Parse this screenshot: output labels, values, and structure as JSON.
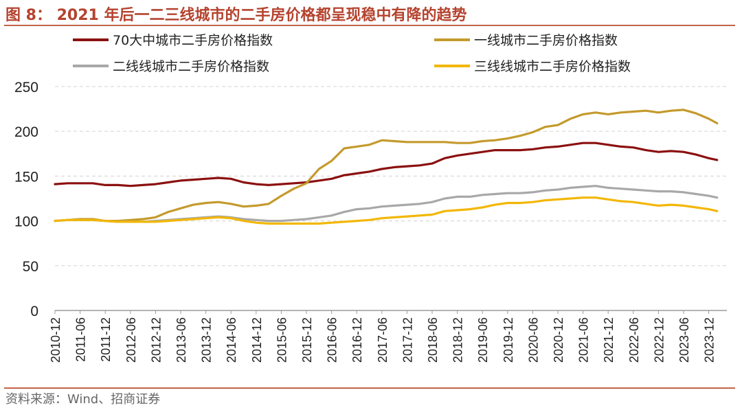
{
  "figure": {
    "title": "图 8： 2021 年后一二三线城市的二手房价格都呈现稳中有降的趋势",
    "source": "资料来源：Wind、招商证券"
  },
  "colors": {
    "s70": "#8B1010",
    "tier1": "#C49A2C",
    "tier2": "#A8A8A8",
    "tier3": "#F2B705",
    "grid": "#D9D9D9",
    "title": "#B5432E"
  },
  "chart_data": {
    "type": "line",
    "title": "",
    "xlabel": "",
    "ylabel": "",
    "ylim": [
      0,
      250
    ],
    "yticks": [
      0,
      50,
      100,
      150,
      200,
      250
    ],
    "grid": true,
    "legend_position": "top",
    "x_tick_labels": [
      "2010-12",
      "2011-06",
      "2011-12",
      "2012-06",
      "2012-12",
      "2013-06",
      "2013-12",
      "2014-06",
      "2014-12",
      "2015-06",
      "2015-12",
      "2016-06",
      "2016-12",
      "2017-06",
      "2017-12",
      "2018-06",
      "2018-12",
      "2019-06",
      "2019-12",
      "2020-06",
      "2020-12",
      "2021-06",
      "2021-12",
      "2022-06",
      "2022-12",
      "2023-06",
      "2023-12"
    ],
    "x_start": "2010-12",
    "x_end": "2024-02",
    "series": [
      {
        "name": "70大中城市二手房价格指数",
        "color_key": "s70",
        "points": [
          [
            "2010-12",
            141
          ],
          [
            "2011-03",
            142
          ],
          [
            "2011-06",
            142
          ],
          [
            "2011-09",
            142
          ],
          [
            "2011-12",
            140
          ],
          [
            "2012-03",
            140
          ],
          [
            "2012-06",
            139
          ],
          [
            "2012-09",
            140
          ],
          [
            "2012-12",
            141
          ],
          [
            "2013-03",
            143
          ],
          [
            "2013-06",
            145
          ],
          [
            "2013-09",
            146
          ],
          [
            "2013-12",
            147
          ],
          [
            "2014-03",
            148
          ],
          [
            "2014-06",
            147
          ],
          [
            "2014-09",
            143
          ],
          [
            "2014-12",
            141
          ],
          [
            "2015-03",
            140
          ],
          [
            "2015-06",
            141
          ],
          [
            "2015-09",
            142
          ],
          [
            "2015-12",
            143
          ],
          [
            "2016-03",
            145
          ],
          [
            "2016-06",
            147
          ],
          [
            "2016-09",
            151
          ],
          [
            "2016-12",
            153
          ],
          [
            "2017-03",
            155
          ],
          [
            "2017-06",
            158
          ],
          [
            "2017-09",
            160
          ],
          [
            "2017-12",
            161
          ],
          [
            "2018-03",
            162
          ],
          [
            "2018-06",
            164
          ],
          [
            "2018-09",
            170
          ],
          [
            "2018-12",
            173
          ],
          [
            "2019-03",
            175
          ],
          [
            "2019-06",
            177
          ],
          [
            "2019-09",
            179
          ],
          [
            "2019-12",
            179
          ],
          [
            "2020-03",
            179
          ],
          [
            "2020-06",
            180
          ],
          [
            "2020-09",
            182
          ],
          [
            "2020-12",
            183
          ],
          [
            "2021-03",
            185
          ],
          [
            "2021-06",
            187
          ],
          [
            "2021-09",
            187
          ],
          [
            "2021-12",
            185
          ],
          [
            "2022-03",
            183
          ],
          [
            "2022-06",
            182
          ],
          [
            "2022-09",
            179
          ],
          [
            "2022-12",
            177
          ],
          [
            "2023-03",
            178
          ],
          [
            "2023-06",
            177
          ],
          [
            "2023-09",
            174
          ],
          [
            "2023-12",
            170
          ],
          [
            "2024-02",
            168
          ]
        ]
      },
      {
        "name": "一线城市二手房价格指数",
        "color_key": "tier1",
        "points": [
          [
            "2010-12",
            100
          ],
          [
            "2011-03",
            101
          ],
          [
            "2011-06",
            102
          ],
          [
            "2011-09",
            102
          ],
          [
            "2011-12",
            100
          ],
          [
            "2012-03",
            100
          ],
          [
            "2012-06",
            101
          ],
          [
            "2012-09",
            102
          ],
          [
            "2012-12",
            104
          ],
          [
            "2013-03",
            110
          ],
          [
            "2013-06",
            114
          ],
          [
            "2013-09",
            118
          ],
          [
            "2013-12",
            120
          ],
          [
            "2014-03",
            121
          ],
          [
            "2014-06",
            119
          ],
          [
            "2014-09",
            116
          ],
          [
            "2014-12",
            117
          ],
          [
            "2015-03",
            119
          ],
          [
            "2015-06",
            128
          ],
          [
            "2015-09",
            136
          ],
          [
            "2015-12",
            142
          ],
          [
            "2016-03",
            158
          ],
          [
            "2016-06",
            167
          ],
          [
            "2016-09",
            181
          ],
          [
            "2016-12",
            183
          ],
          [
            "2017-03",
            185
          ],
          [
            "2017-06",
            190
          ],
          [
            "2017-09",
            189
          ],
          [
            "2017-12",
            188
          ],
          [
            "2018-03",
            188
          ],
          [
            "2018-06",
            188
          ],
          [
            "2018-09",
            188
          ],
          [
            "2018-12",
            187
          ],
          [
            "2019-03",
            187
          ],
          [
            "2019-06",
            189
          ],
          [
            "2019-09",
            190
          ],
          [
            "2019-12",
            192
          ],
          [
            "2020-03",
            195
          ],
          [
            "2020-06",
            199
          ],
          [
            "2020-09",
            205
          ],
          [
            "2020-12",
            207
          ],
          [
            "2021-03",
            214
          ],
          [
            "2021-06",
            219
          ],
          [
            "2021-09",
            221
          ],
          [
            "2021-12",
            219
          ],
          [
            "2022-03",
            221
          ],
          [
            "2022-06",
            222
          ],
          [
            "2022-09",
            223
          ],
          [
            "2022-12",
            221
          ],
          [
            "2023-03",
            223
          ],
          [
            "2023-06",
            224
          ],
          [
            "2023-09",
            220
          ],
          [
            "2023-12",
            214
          ],
          [
            "2024-02",
            209
          ]
        ]
      },
      {
        "name": "二线线城市二手房价格指数",
        "color_key": "tier2",
        "points": [
          [
            "2010-12",
            100
          ],
          [
            "2011-03",
            101
          ],
          [
            "2011-06",
            101
          ],
          [
            "2011-09",
            101
          ],
          [
            "2011-12",
            100
          ],
          [
            "2012-03",
            99
          ],
          [
            "2012-06",
            99
          ],
          [
            "2012-09",
            99
          ],
          [
            "2012-12",
            100
          ],
          [
            "2013-03",
            101
          ],
          [
            "2013-06",
            102
          ],
          [
            "2013-09",
            103
          ],
          [
            "2013-12",
            104
          ],
          [
            "2014-03",
            105
          ],
          [
            "2014-06",
            104
          ],
          [
            "2014-09",
            102
          ],
          [
            "2014-12",
            101
          ],
          [
            "2015-03",
            100
          ],
          [
            "2015-06",
            100
          ],
          [
            "2015-09",
            101
          ],
          [
            "2015-12",
            102
          ],
          [
            "2016-03",
            104
          ],
          [
            "2016-06",
            106
          ],
          [
            "2016-09",
            110
          ],
          [
            "2016-12",
            113
          ],
          [
            "2017-03",
            114
          ],
          [
            "2017-06",
            116
          ],
          [
            "2017-09",
            117
          ],
          [
            "2017-12",
            118
          ],
          [
            "2018-03",
            119
          ],
          [
            "2018-06",
            121
          ],
          [
            "2018-09",
            125
          ],
          [
            "2018-12",
            127
          ],
          [
            "2019-03",
            127
          ],
          [
            "2019-06",
            129
          ],
          [
            "2019-09",
            130
          ],
          [
            "2019-12",
            131
          ],
          [
            "2020-03",
            131
          ],
          [
            "2020-06",
            132
          ],
          [
            "2020-09",
            134
          ],
          [
            "2020-12",
            135
          ],
          [
            "2021-03",
            137
          ],
          [
            "2021-06",
            138
          ],
          [
            "2021-09",
            139
          ],
          [
            "2021-12",
            137
          ],
          [
            "2022-03",
            136
          ],
          [
            "2022-06",
            135
          ],
          [
            "2022-09",
            134
          ],
          [
            "2022-12",
            133
          ],
          [
            "2023-03",
            133
          ],
          [
            "2023-06",
            132
          ],
          [
            "2023-09",
            130
          ],
          [
            "2023-12",
            128
          ],
          [
            "2024-02",
            126
          ]
        ]
      },
      {
        "name": "三线线城市二手房价格指数",
        "color_key": "tier3",
        "points": [
          [
            "2010-12",
            100
          ],
          [
            "2011-03",
            101
          ],
          [
            "2011-06",
            101
          ],
          [
            "2011-09",
            101
          ],
          [
            "2011-12",
            100
          ],
          [
            "2012-03",
            99
          ],
          [
            "2012-06",
            99
          ],
          [
            "2012-09",
            99
          ],
          [
            "2012-12",
            99
          ],
          [
            "2013-03",
            100
          ],
          [
            "2013-06",
            101
          ],
          [
            "2013-09",
            102
          ],
          [
            "2013-12",
            103
          ],
          [
            "2014-03",
            104
          ],
          [
            "2014-06",
            103
          ],
          [
            "2014-09",
            100
          ],
          [
            "2014-12",
            98
          ],
          [
            "2015-03",
            97
          ],
          [
            "2015-06",
            97
          ],
          [
            "2015-09",
            97
          ],
          [
            "2015-12",
            97
          ],
          [
            "2016-03",
            97
          ],
          [
            "2016-06",
            98
          ],
          [
            "2016-09",
            99
          ],
          [
            "2016-12",
            100
          ],
          [
            "2017-03",
            101
          ],
          [
            "2017-06",
            103
          ],
          [
            "2017-09",
            104
          ],
          [
            "2017-12",
            105
          ],
          [
            "2018-03",
            106
          ],
          [
            "2018-06",
            107
          ],
          [
            "2018-09",
            111
          ],
          [
            "2018-12",
            112
          ],
          [
            "2019-03",
            113
          ],
          [
            "2019-06",
            115
          ],
          [
            "2019-09",
            118
          ],
          [
            "2019-12",
            120
          ],
          [
            "2020-03",
            120
          ],
          [
            "2020-06",
            121
          ],
          [
            "2020-09",
            123
          ],
          [
            "2020-12",
            124
          ],
          [
            "2021-03",
            125
          ],
          [
            "2021-06",
            126
          ],
          [
            "2021-09",
            126
          ],
          [
            "2021-12",
            124
          ],
          [
            "2022-03",
            122
          ],
          [
            "2022-06",
            121
          ],
          [
            "2022-09",
            119
          ],
          [
            "2022-12",
            117
          ],
          [
            "2023-03",
            118
          ],
          [
            "2023-06",
            117
          ],
          [
            "2023-09",
            115
          ],
          [
            "2023-12",
            113
          ],
          [
            "2024-02",
            111
          ]
        ]
      }
    ]
  }
}
